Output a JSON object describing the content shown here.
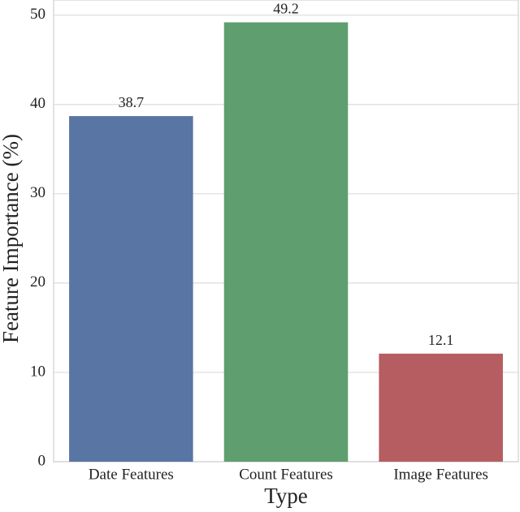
{
  "chart_data": {
    "type": "bar",
    "x_label": "Type",
    "y_label": "Feature Importance (%)",
    "categories": [
      "Date Features",
      "Count Features",
      "Image Features"
    ],
    "values": [
      38.7,
      49.2,
      12.1
    ],
    "colors": [
      "#5975a4",
      "#5f9e6e",
      "#b55d60"
    ],
    "ylim": [
      0,
      51.7
    ],
    "yticks": [
      0,
      10,
      20,
      30,
      40,
      50
    ],
    "grid": true
  }
}
